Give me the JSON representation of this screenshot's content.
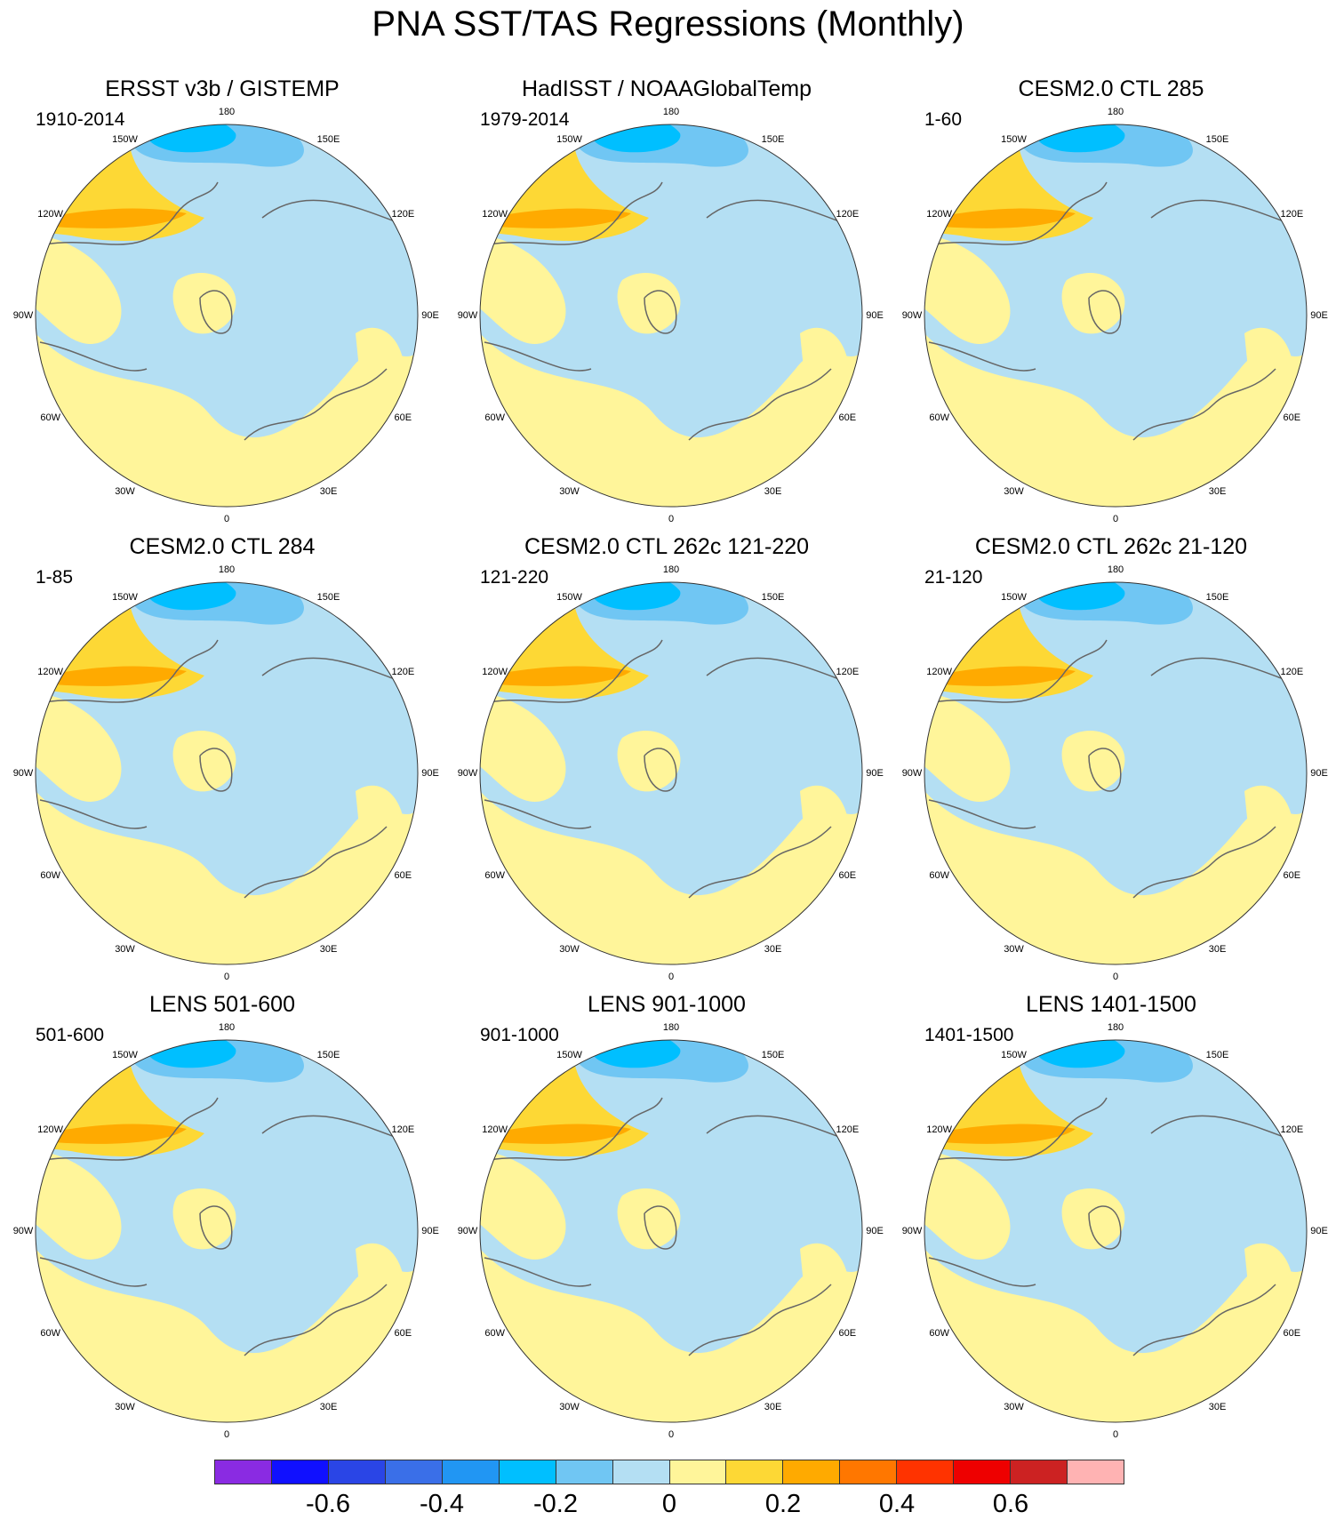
{
  "title": "PNA SST/TAS Regressions (Monthly)",
  "longitude_labels": [
    "180",
    "150E",
    "120E",
    "90E",
    "60E",
    "30E",
    "0",
    "30W",
    "60W",
    "90W",
    "120W",
    "150W"
  ],
  "panels": [
    {
      "title": "ERSST v3b / GISTEMP",
      "period": "1910-2014"
    },
    {
      "title": "HadISST / NOAAGlobalTemp",
      "period": "1979-2014"
    },
    {
      "title": "CESM2.0 CTL 285",
      "period": "1-60"
    },
    {
      "title": "CESM2.0 CTL 284",
      "period": "1-85"
    },
    {
      "title": "CESM2.0 CTL 262c 121-220",
      "period": "121-220"
    },
    {
      "title": "CESM2.0 CTL 262c 21-120",
      "period": "21-120"
    },
    {
      "title": "LENS 501-600",
      "period": "501-600"
    },
    {
      "title": "LENS 901-1000",
      "period": "901-1000"
    },
    {
      "title": "LENS 1401-1500",
      "period": "1401-1500"
    }
  ],
  "colorbar": {
    "colors": [
      "#8a2be2",
      "#1010ff",
      "#2a45e6",
      "#3a6fe8",
      "#2196f3",
      "#00bfff",
      "#70c6f3",
      "#b4dff3",
      "#fff59a",
      "#fdd835",
      "#ffaa00",
      "#ff7700",
      "#ff3300",
      "#ee0000",
      "#cc2222",
      "#ffb3b3"
    ],
    "labels": [
      "-0.6",
      "-0.4",
      "-0.2",
      "0",
      "0.2",
      "0.4",
      "0.6"
    ]
  },
  "map_colors": {
    "neg_light": "#b4dff3",
    "neg_mid": "#70c6f3",
    "neg_strong": "#00bfff",
    "pos_light": "#fff59a",
    "pos_mid": "#fdd835",
    "pos_strong": "#ffaa00",
    "land_gap": "#ffffff",
    "coast": "#666666"
  }
}
